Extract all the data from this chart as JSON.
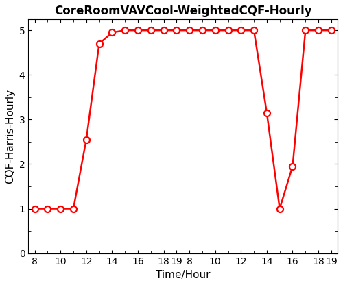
{
  "title": "CoreRoomVAVCool-WeightedCQF-Hourly",
  "xlabel": "Time/Hour",
  "ylabel": "CQF-Harris-Hourly",
  "line_color": "#FF0000",
  "marker": "o",
  "marker_facecolor": "white",
  "marker_edgecolor": "#FF0000",
  "linewidth": 1.8,
  "markersize": 6.5,
  "markeredgewidth": 1.6,
  "ylim": [
    0,
    5.25
  ],
  "background_color": "#FFFFFF",
  "title_fontsize": 12,
  "label_fontsize": 11,
  "tick_fontsize": 10,
  "x_values": [
    8,
    9,
    10,
    11,
    12,
    13,
    14,
    15,
    16,
    17,
    18,
    19,
    20,
    21,
    22,
    23,
    24,
    25,
    26,
    27,
    28,
    29,
    30,
    31
  ],
  "y_values": [
    1,
    1,
    1,
    1,
    2.55,
    4.7,
    4.95,
    5,
    5,
    5,
    5,
    5,
    5,
    5,
    5,
    5,
    5,
    5,
    3.15,
    1.0,
    1.95,
    5,
    5,
    5
  ],
  "xtick_positions": [
    8,
    10,
    12,
    14,
    16,
    18,
    19,
    20,
    22,
    24,
    26,
    28,
    30,
    31
  ],
  "xtick_labels": [
    "8",
    "10",
    "12",
    "14",
    "16",
    "18",
    "19",
    "8",
    "10",
    "12",
    "14",
    "16",
    "18",
    "19"
  ],
  "ytick_positions": [
    0,
    1,
    2,
    3,
    4,
    5
  ],
  "ytick_labels": [
    "0",
    "1",
    "2",
    "3",
    "4",
    "5"
  ]
}
